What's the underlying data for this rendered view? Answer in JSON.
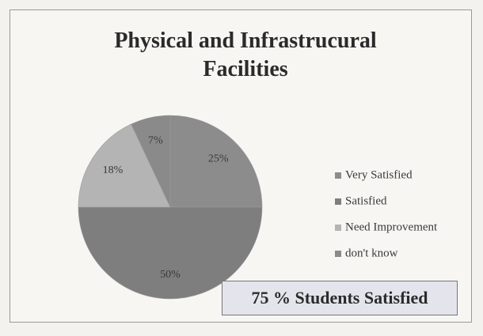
{
  "chart_data": {
    "type": "pie",
    "title": "Physical and Infrastrucural Facilities",
    "categories": [
      "Very Satisfied",
      "Satisfied",
      "Need Improvement",
      "don't know"
    ],
    "values": [
      25,
      50,
      18,
      7
    ],
    "value_labels": [
      "25%",
      "50%",
      "18%",
      "7%"
    ],
    "colors": [
      "#8c8c8c",
      "#7e7e7e",
      "#b4b4b4",
      "#8a8a8a"
    ],
    "legend": "right",
    "annotation": "75 % Students Satisfied"
  }
}
